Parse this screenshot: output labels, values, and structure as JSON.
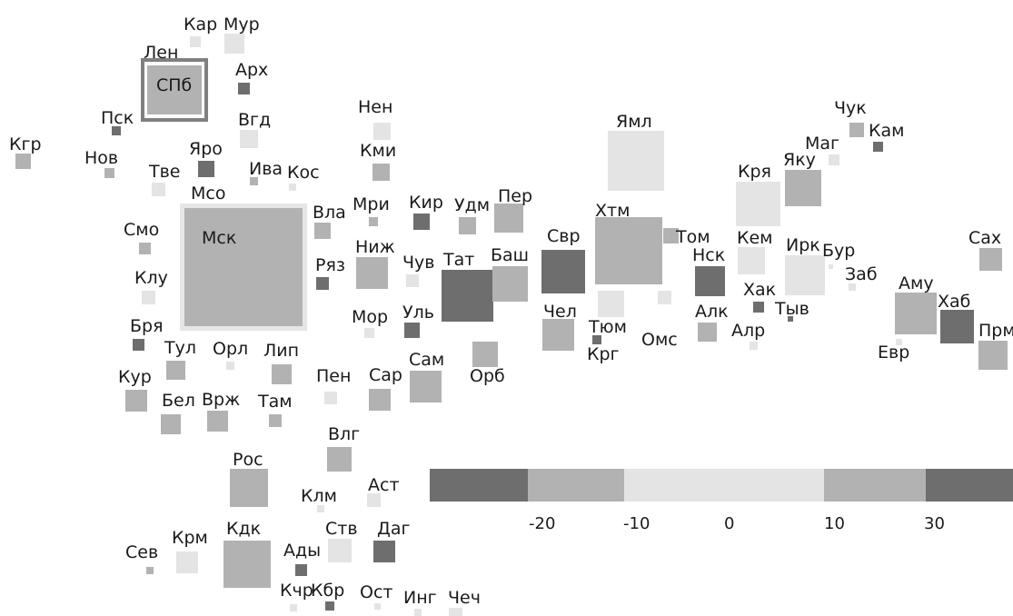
{
  "map": {
    "palette": {
      "c1": "#6e6e6e",
      "c2": "#b2b2b2",
      "c3": "#e4e4e4",
      "frame_outer": "#e6e6e6",
      "frame_inner": "#808080"
    },
    "regions": [
      {
        "code": "Кар",
        "shade": "c3"
      },
      {
        "code": "Мур",
        "shade": "c3"
      },
      {
        "code": "Лен",
        "shade": "c2"
      },
      {
        "code": "СПб",
        "shade": "c2"
      },
      {
        "code": "Арх",
        "shade": "c1"
      },
      {
        "code": "Пск",
        "shade": "c1"
      },
      {
        "code": "Вгд",
        "shade": "c3"
      },
      {
        "code": "Кгр",
        "shade": "c2"
      },
      {
        "code": "Нов",
        "shade": "c2"
      },
      {
        "code": "Яро",
        "shade": "c1"
      },
      {
        "code": "Тве",
        "shade": "c3"
      },
      {
        "code": "Ива",
        "shade": "c2"
      },
      {
        "code": "Кос",
        "shade": "c3"
      },
      {
        "code": "Мсо",
        "shade": "c3"
      },
      {
        "code": "Мск",
        "shade": "c2"
      },
      {
        "code": "Смо",
        "shade": "c2"
      },
      {
        "code": "Клу",
        "shade": "c3"
      },
      {
        "code": "Бря",
        "shade": "c1"
      },
      {
        "code": "Тул",
        "shade": "c2"
      },
      {
        "code": "Орл",
        "shade": "c3"
      },
      {
        "code": "Лип",
        "shade": "c2"
      },
      {
        "code": "Кур",
        "shade": "c2"
      },
      {
        "code": "Бел",
        "shade": "c2"
      },
      {
        "code": "Врж",
        "shade": "c2"
      },
      {
        "code": "Там",
        "shade": "c2"
      },
      {
        "code": "Нен",
        "shade": "c3"
      },
      {
        "code": "Кми",
        "shade": "c2"
      },
      {
        "code": "Вла",
        "shade": "c2"
      },
      {
        "code": "Мри",
        "shade": "c2"
      },
      {
        "code": "Кир",
        "shade": "c1"
      },
      {
        "code": "Удм",
        "shade": "c2"
      },
      {
        "code": "Пер",
        "shade": "c2"
      },
      {
        "code": "Ряз",
        "shade": "c1"
      },
      {
        "code": "Ниж",
        "shade": "c2"
      },
      {
        "code": "Чув",
        "shade": "c3"
      },
      {
        "code": "Тат",
        "shade": "c1"
      },
      {
        "code": "Баш",
        "shade": "c2"
      },
      {
        "code": "Мор",
        "shade": "c3"
      },
      {
        "code": "Уль",
        "shade": "c1"
      },
      {
        "code": "Пен",
        "shade": "c3"
      },
      {
        "code": "Сар",
        "shade": "c2"
      },
      {
        "code": "Сам",
        "shade": "c2"
      },
      {
        "code": "Орб",
        "shade": "c2"
      },
      {
        "code": "Влг",
        "shade": "c2"
      },
      {
        "code": "Рос",
        "shade": "c2"
      },
      {
        "code": "Клм",
        "shade": "c3"
      },
      {
        "code": "Аст",
        "shade": "c3"
      },
      {
        "code": "Сев",
        "shade": "c2"
      },
      {
        "code": "Крм",
        "shade": "c3"
      },
      {
        "code": "Кдк",
        "shade": "c2"
      },
      {
        "code": "Ады",
        "shade": "c1"
      },
      {
        "code": "Ств",
        "shade": "c3"
      },
      {
        "code": "Даг",
        "shade": "c1"
      },
      {
        "code": "Кчр",
        "shade": "c3"
      },
      {
        "code": "Кбр",
        "shade": "c1"
      },
      {
        "code": "Ост",
        "shade": "c3"
      },
      {
        "code": "Инг",
        "shade": "c3"
      },
      {
        "code": "Чеч",
        "shade": "c3"
      },
      {
        "code": "Ямл",
        "shade": "c3"
      },
      {
        "code": "Свр",
        "shade": "c1"
      },
      {
        "code": "Хтм",
        "shade": "c2"
      },
      {
        "code": "Том",
        "shade": "c2"
      },
      {
        "code": "Чел",
        "shade": "c2"
      },
      {
        "code": "Тюм",
        "shade": "c3"
      },
      {
        "code": "Крг",
        "shade": "c1"
      },
      {
        "code": "Омс",
        "shade": "c3"
      },
      {
        "code": "Нск",
        "shade": "c1"
      },
      {
        "code": "Алк",
        "shade": "c2"
      },
      {
        "code": "Кря",
        "shade": "c3"
      },
      {
        "code": "Кем",
        "shade": "c3"
      },
      {
        "code": "Хак",
        "shade": "c1"
      },
      {
        "code": "Тыв",
        "shade": "c1"
      },
      {
        "code": "Алр",
        "shade": "c3"
      },
      {
        "code": "Яку",
        "shade": "c2"
      },
      {
        "code": "Маг",
        "shade": "c3"
      },
      {
        "code": "Чук",
        "shade": "c2"
      },
      {
        "code": "Кам",
        "shade": "c1"
      },
      {
        "code": "Ирк",
        "shade": "c3"
      },
      {
        "code": "Бур",
        "shade": "c3"
      },
      {
        "code": "Заб",
        "shade": "c3"
      },
      {
        "code": "Аму",
        "shade": "c2"
      },
      {
        "code": "Евр",
        "shade": "c3"
      },
      {
        "code": "Хаб",
        "shade": "c1"
      },
      {
        "code": "Сах",
        "shade": "c2"
      },
      {
        "code": "Прм",
        "shade": "c2"
      }
    ]
  },
  "legend": {
    "colors": [
      "#6e6e6e",
      "#b2b2b2",
      "#e4e4e4",
      "#e4e4e4",
      "#b2b2b2",
      "#6e6e6e"
    ],
    "ticks": [
      "-20",
      "-10",
      "0",
      "10",
      "30"
    ]
  }
}
